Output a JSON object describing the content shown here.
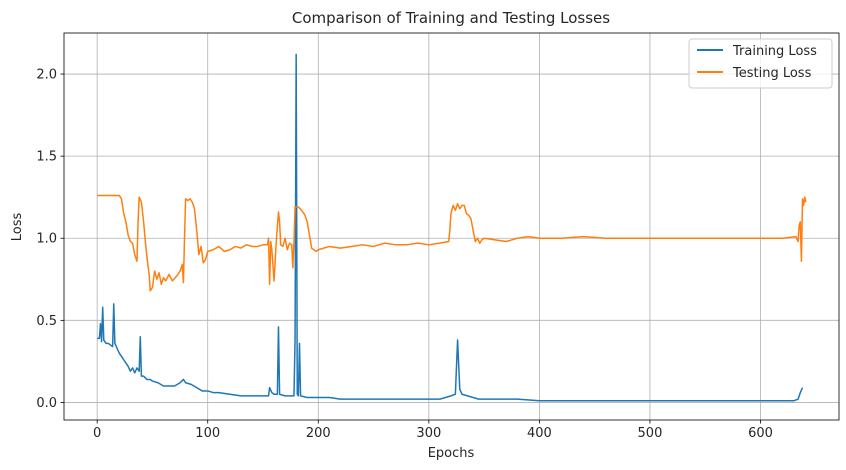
{
  "chart_data": {
    "type": "line",
    "title": "Comparison of Training and Testing Losses",
    "xlabel": "Epochs",
    "ylabel": "Loss",
    "xlim": [
      -30,
      671
    ],
    "ylim": [
      -0.107,
      2.25
    ],
    "xticks": [
      0,
      100,
      200,
      300,
      400,
      500,
      600
    ],
    "yticks": [
      0.0,
      0.5,
      1.0,
      1.5,
      2.0
    ],
    "xtick_labels": [
      "0",
      "100",
      "200",
      "300",
      "400",
      "500",
      "600"
    ],
    "ytick_labels": [
      "0.0",
      "0.5",
      "1.0",
      "1.5",
      "2.0"
    ],
    "grid": true,
    "legend_position": "top-right",
    "series": [
      {
        "name": "Training Loss",
        "color": "#1f77b4",
        "points": [
          [
            0,
            0.39
          ],
          [
            2,
            0.39
          ],
          [
            3,
            0.48
          ],
          [
            4,
            0.37
          ],
          [
            5,
            0.58
          ],
          [
            6,
            0.38
          ],
          [
            8,
            0.36
          ],
          [
            10,
            0.36
          ],
          [
            12,
            0.35
          ],
          [
            14,
            0.34
          ],
          [
            15,
            0.6
          ],
          [
            16,
            0.36
          ],
          [
            18,
            0.33
          ],
          [
            20,
            0.3
          ],
          [
            22,
            0.28
          ],
          [
            25,
            0.25
          ],
          [
            28,
            0.22
          ],
          [
            30,
            0.19
          ],
          [
            32,
            0.21
          ],
          [
            34,
            0.18
          ],
          [
            36,
            0.21
          ],
          [
            38,
            0.19
          ],
          [
            39,
            0.4
          ],
          [
            40,
            0.16
          ],
          [
            42,
            0.16
          ],
          [
            45,
            0.14
          ],
          [
            48,
            0.14
          ],
          [
            50,
            0.13
          ],
          [
            55,
            0.12
          ],
          [
            60,
            0.1
          ],
          [
            65,
            0.1
          ],
          [
            70,
            0.1
          ],
          [
            75,
            0.12
          ],
          [
            78,
            0.14
          ],
          [
            80,
            0.12
          ],
          [
            85,
            0.11
          ],
          [
            90,
            0.09
          ],
          [
            95,
            0.07
          ],
          [
            100,
            0.07
          ],
          [
            105,
            0.06
          ],
          [
            110,
            0.06
          ],
          [
            120,
            0.05
          ],
          [
            130,
            0.04
          ],
          [
            140,
            0.04
          ],
          [
            150,
            0.04
          ],
          [
            155,
            0.04
          ],
          [
            156,
            0.09
          ],
          [
            158,
            0.06
          ],
          [
            160,
            0.05
          ],
          [
            163,
            0.05
          ],
          [
            164,
            0.46
          ],
          [
            165,
            0.05
          ],
          [
            170,
            0.04
          ],
          [
            175,
            0.04
          ],
          [
            178,
            0.04
          ],
          [
            179,
            0.38
          ],
          [
            180,
            2.12
          ],
          [
            181,
            0.05
          ],
          [
            182,
            0.04
          ],
          [
            183,
            0.36
          ],
          [
            184,
            0.04
          ],
          [
            190,
            0.03
          ],
          [
            200,
            0.03
          ],
          [
            210,
            0.03
          ],
          [
            220,
            0.02
          ],
          [
            240,
            0.02
          ],
          [
            260,
            0.02
          ],
          [
            280,
            0.02
          ],
          [
            300,
            0.02
          ],
          [
            310,
            0.02
          ],
          [
            315,
            0.03
          ],
          [
            320,
            0.04
          ],
          [
            324,
            0.05
          ],
          [
            326,
            0.38
          ],
          [
            328,
            0.08
          ],
          [
            330,
            0.05
          ],
          [
            335,
            0.04
          ],
          [
            340,
            0.03
          ],
          [
            345,
            0.02
          ],
          [
            360,
            0.02
          ],
          [
            380,
            0.02
          ],
          [
            400,
            0.01
          ],
          [
            450,
            0.01
          ],
          [
            500,
            0.01
          ],
          [
            550,
            0.01
          ],
          [
            600,
            0.01
          ],
          [
            630,
            0.01
          ],
          [
            634,
            0.02
          ],
          [
            636,
            0.06
          ],
          [
            638,
            0.09
          ]
        ]
      },
      {
        "name": "Testing Loss",
        "color": "#ff7f0e",
        "points": [
          [
            0,
            1.26
          ],
          [
            10,
            1.26
          ],
          [
            20,
            1.26
          ],
          [
            22,
            1.24
          ],
          [
            24,
            1.15
          ],
          [
            26,
            1.1
          ],
          [
            28,
            1.02
          ],
          [
            30,
            0.98
          ],
          [
            32,
            0.97
          ],
          [
            34,
            0.9
          ],
          [
            36,
            0.86
          ],
          [
            37,
            1.1
          ],
          [
            38,
            1.25
          ],
          [
            40,
            1.22
          ],
          [
            42,
            1.1
          ],
          [
            44,
            0.95
          ],
          [
            46,
            0.83
          ],
          [
            47,
            0.78
          ],
          [
            48,
            0.68
          ],
          [
            50,
            0.7
          ],
          [
            52,
            0.8
          ],
          [
            54,
            0.75
          ],
          [
            56,
            0.79
          ],
          [
            58,
            0.72
          ],
          [
            60,
            0.76
          ],
          [
            62,
            0.74
          ],
          [
            65,
            0.78
          ],
          [
            68,
            0.74
          ],
          [
            72,
            0.77
          ],
          [
            75,
            0.8
          ],
          [
            77,
            0.84
          ],
          [
            78,
            0.73
          ],
          [
            79,
            1.0
          ],
          [
            80,
            1.24
          ],
          [
            82,
            1.23
          ],
          [
            84,
            1.24
          ],
          [
            86,
            1.22
          ],
          [
            88,
            1.18
          ],
          [
            90,
            1.05
          ],
          [
            92,
            0.9
          ],
          [
            94,
            0.95
          ],
          [
            96,
            0.85
          ],
          [
            98,
            0.87
          ],
          [
            100,
            0.92
          ],
          [
            105,
            0.93
          ],
          [
            110,
            0.95
          ],
          [
            115,
            0.92
          ],
          [
            120,
            0.93
          ],
          [
            125,
            0.95
          ],
          [
            130,
            0.94
          ],
          [
            135,
            0.96
          ],
          [
            140,
            0.95
          ],
          [
            145,
            0.95
          ],
          [
            150,
            0.96
          ],
          [
            154,
            0.96
          ],
          [
            155,
            1.0
          ],
          [
            156,
            0.72
          ],
          [
            157,
            0.98
          ],
          [
            158,
            0.93
          ],
          [
            160,
            0.74
          ],
          [
            162,
            0.98
          ],
          [
            164,
            1.16
          ],
          [
            165,
            1.1
          ],
          [
            166,
            0.96
          ],
          [
            168,
            0.95
          ],
          [
            170,
            1.0
          ],
          [
            172,
            0.93
          ],
          [
            174,
            0.97
          ],
          [
            176,
            0.96
          ],
          [
            177,
            0.82
          ],
          [
            178,
            0.98
          ],
          [
            179,
            1.19
          ],
          [
            182,
            1.19
          ],
          [
            185,
            1.17
          ],
          [
            188,
            1.14
          ],
          [
            190,
            1.1
          ],
          [
            192,
            1.02
          ],
          [
            194,
            0.94
          ],
          [
            196,
            0.93
          ],
          [
            198,
            0.92
          ],
          [
            200,
            0.93
          ],
          [
            210,
            0.95
          ],
          [
            220,
            0.94
          ],
          [
            230,
            0.95
          ],
          [
            240,
            0.96
          ],
          [
            250,
            0.95
          ],
          [
            260,
            0.97
          ],
          [
            270,
            0.96
          ],
          [
            280,
            0.96
          ],
          [
            290,
            0.97
          ],
          [
            300,
            0.96
          ],
          [
            310,
            0.97
          ],
          [
            318,
            0.98
          ],
          [
            319,
            1.05
          ],
          [
            320,
            1.15
          ],
          [
            322,
            1.2
          ],
          [
            324,
            1.17
          ],
          [
            326,
            1.21
          ],
          [
            328,
            1.18
          ],
          [
            330,
            1.2
          ],
          [
            332,
            1.2
          ],
          [
            334,
            1.15
          ],
          [
            336,
            1.14
          ],
          [
            338,
            1.12
          ],
          [
            340,
            1.05
          ],
          [
            342,
            0.98
          ],
          [
            344,
            1.0
          ],
          [
            346,
            0.97
          ],
          [
            348,
            0.99
          ],
          [
            350,
            1.0
          ],
          [
            360,
            0.99
          ],
          [
            370,
            0.98
          ],
          [
            380,
            1.0
          ],
          [
            390,
            1.01
          ],
          [
            400,
            1.0
          ],
          [
            420,
            1.0
          ],
          [
            440,
            1.01
          ],
          [
            460,
            1.0
          ],
          [
            480,
            1.0
          ],
          [
            500,
            1.0
          ],
          [
            520,
            1.0
          ],
          [
            540,
            1.0
          ],
          [
            560,
            1.0
          ],
          [
            580,
            1.0
          ],
          [
            600,
            1.0
          ],
          [
            620,
            1.0
          ],
          [
            632,
            1.01
          ],
          [
            634,
            0.98
          ],
          [
            635,
            1.08
          ],
          [
            636,
            1.1
          ],
          [
            637,
            0.86
          ],
          [
            638,
            1.24
          ],
          [
            639,
            1.2
          ],
          [
            640,
            1.25
          ],
          [
            641,
            1.22
          ]
        ]
      }
    ]
  }
}
